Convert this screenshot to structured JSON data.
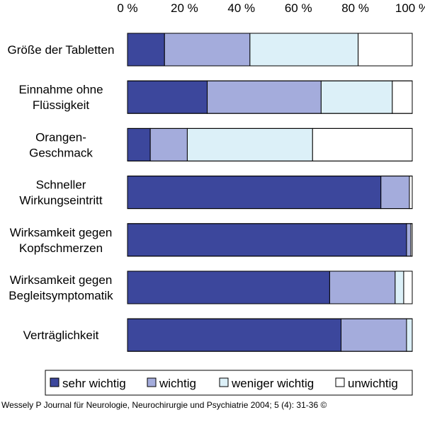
{
  "chart_data": {
    "type": "bar",
    "orientation": "horizontal",
    "stacked": true,
    "x_tick_labels": [
      "0 %",
      "20 %",
      "40 %",
      "60 %",
      "80 %",
      "100 %"
    ],
    "xlim": [
      0,
      100
    ],
    "legend_position": "bottom",
    "categories": [
      [
        "Größe der Tabletten"
      ],
      [
        "Einnahme ohne",
        "Flüssigkeit"
      ],
      [
        "Orangen-",
        "Geschmack"
      ],
      [
        "Schneller",
        "Wirkungseintritt"
      ],
      [
        "Wirksamkeit gegen",
        "Kopfschmerzen"
      ],
      [
        "Wirksamkeit gegen",
        "Begleitsymptomatik"
      ],
      [
        "Verträglichkeit"
      ]
    ],
    "series": [
      {
        "name": "sehr wichtig",
        "color": "#3c479c",
        "values": [
          13,
          28,
          8,
          89,
          98,
          71,
          75
        ]
      },
      {
        "name": "wichtig",
        "color": "#a4acdc",
        "values": [
          30,
          40,
          13,
          10,
          1.5,
          23,
          23
        ]
      },
      {
        "name": "weniger wichtig",
        "color": "#dcf0f8",
        "values": [
          38,
          25,
          44,
          0,
          0,
          3,
          2
        ]
      },
      {
        "name": "unwichtig",
        "color": "#ffffff",
        "values": [
          19,
          7,
          35,
          1,
          0.5,
          3,
          0
        ]
      }
    ]
  },
  "source_text": "Wessely P Journal für Neurologie, Neurochirurgie und Psychiatrie 2004; 5 (4): 31-36 ©"
}
